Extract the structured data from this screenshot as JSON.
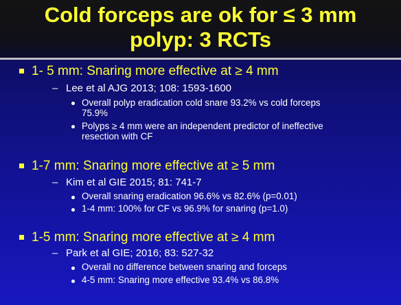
{
  "title": {
    "line1": "Cold forceps are ok for ≤ 3 mm",
    "line2": "polyp: 3 RCTs"
  },
  "sections": [
    {
      "heading": "1- 5 mm: Snaring more effective at ≥ 4 mm",
      "citation": "Lee et al AJG 2013; 108: 1593-1600",
      "points": [
        [
          "Overall polyp eradication cold snare 93.2% vs cold forceps",
          "75.9%"
        ],
        [
          "Polyps ≥ 4 mm were an independent predictor of ineffective",
          "resection with CF"
        ]
      ]
    },
    {
      "heading": "1-7 mm: Snaring more effective at ≥ 5 mm",
      "citation": "Kim et al GIE 2015; 81: 741-7",
      "points": [
        [
          "Overall snaring eradication 96.6% vs 82.6% (p=0.01)"
        ],
        [
          "1-4 mm: 100% for CF vs 96.9% for snaring (p=1.0)"
        ]
      ]
    },
    {
      "heading": "1-5 mm: Snaring more effective at ≥ 4 mm",
      "citation": "Park et al GIE; 2016;  83: 527-32",
      "points": [
        [
          "Overall no difference between snaring and forceps"
        ],
        [
          "4-5 mm: Snaring more effective 93.4% vs 86.8%"
        ]
      ]
    }
  ]
}
